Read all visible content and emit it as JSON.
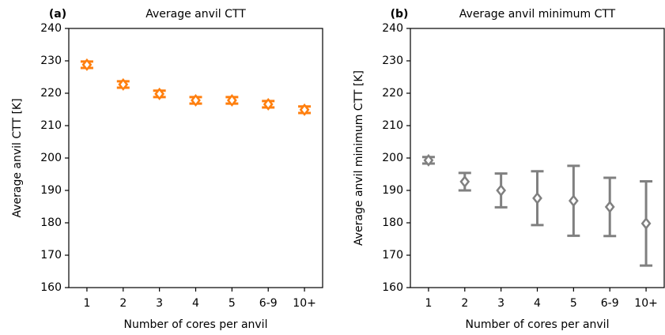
{
  "chart_data": [
    {
      "type": "errorbar",
      "panel_label": "(a)",
      "title": "Average anvil CTT",
      "xlabel": "Number of cores per anvil",
      "ylabel": "Average anvil CTT [K]",
      "categories": [
        "1",
        "2",
        "3",
        "4",
        "5",
        "6-9",
        "10+"
      ],
      "values": [
        228.8,
        222.7,
        219.8,
        217.8,
        217.8,
        216.6,
        214.9
      ],
      "errors": [
        1.0,
        1.0,
        1.0,
        1.0,
        1.0,
        1.0,
        1.0
      ],
      "color": "#ff7f0e",
      "ylim": [
        160,
        240
      ],
      "yticks": [
        160,
        170,
        180,
        190,
        200,
        210,
        220,
        230,
        240
      ]
    },
    {
      "type": "errorbar",
      "panel_label": "(b)",
      "title": "Average anvil minimum CTT",
      "xlabel": "Number of cores per anvil",
      "ylabel": "Average anvil minimum CTT [K]",
      "categories": [
        "1",
        "2",
        "3",
        "4",
        "5",
        "6-9",
        "10+"
      ],
      "values": [
        199.3,
        192.7,
        190.0,
        187.6,
        186.8,
        184.9,
        179.8
      ],
      "errors": [
        1.0,
        2.7,
        5.2,
        8.3,
        10.8,
        9.0,
        13.0
      ],
      "color": "#808080",
      "ylim": [
        160,
        240
      ],
      "yticks": [
        160,
        170,
        180,
        190,
        200,
        210,
        220,
        230,
        240
      ]
    }
  ]
}
